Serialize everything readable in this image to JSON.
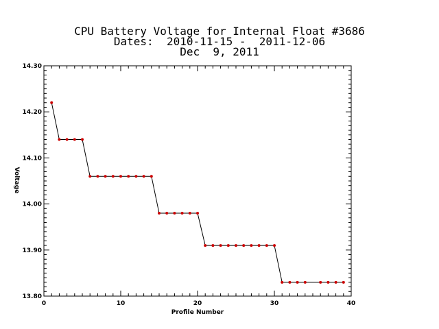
{
  "chart_data": {
    "type": "line",
    "title_lines": [
      "CPU Battery Voltage for Internal Float #3686",
      "Dates:  2010-11-15 -  2011-12-06",
      "Dec  9, 2011"
    ],
    "xlabel": "Profile Number",
    "ylabel": "Voltage",
    "xlim": [
      0,
      40
    ],
    "ylim": [
      13.8,
      14.3
    ],
    "x_ticks": [
      0,
      10,
      20,
      30,
      40
    ],
    "x_tick_labels": [
      "0",
      "10",
      "20",
      "30",
      "40"
    ],
    "y_ticks": [
      13.8,
      13.9,
      14.0,
      14.1,
      14.2,
      14.3
    ],
    "y_tick_labels": [
      "13.80",
      "13.90",
      "14.00",
      "14.10",
      "14.20",
      "14.30"
    ],
    "grid": false,
    "line_color": "#000000",
    "marker_color": "#cc0000",
    "series": [
      {
        "x": [
          1,
          2,
          3,
          4,
          5,
          6,
          7,
          8,
          9,
          10,
          11,
          12,
          13,
          14,
          15,
          16,
          17,
          18,
          19,
          20,
          21,
          22,
          23,
          24,
          25,
          26,
          27,
          28,
          29,
          30,
          31,
          32,
          33,
          34,
          36,
          37,
          38,
          39
        ],
        "y": [
          14.22,
          14.14,
          14.14,
          14.14,
          14.14,
          14.06,
          14.06,
          14.06,
          14.06,
          14.06,
          14.06,
          14.06,
          14.06,
          14.06,
          13.98,
          13.98,
          13.98,
          13.98,
          13.98,
          13.98,
          13.91,
          13.91,
          13.91,
          13.91,
          13.91,
          13.91,
          13.91,
          13.91,
          13.91,
          13.91,
          13.83,
          13.83,
          13.83,
          13.83,
          13.83,
          13.83,
          13.83,
          13.83
        ]
      }
    ]
  }
}
